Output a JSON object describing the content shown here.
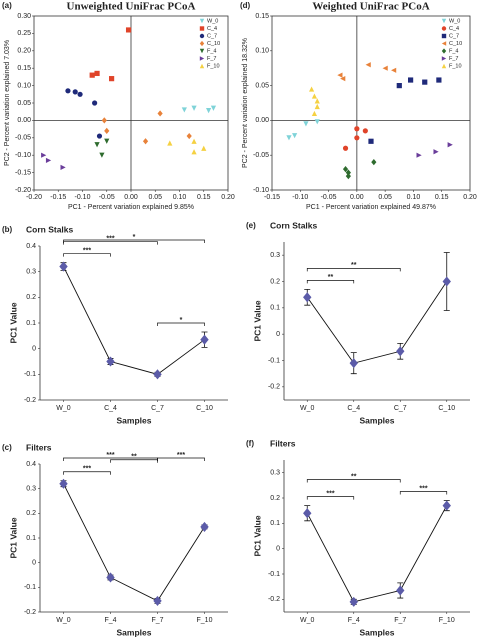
{
  "chart_data": [
    {
      "type": "scatter",
      "panel_label": "(a)",
      "title": "Unweighted UniFrac PCoA",
      "x_label": "PC1 - Percent variation explained 9.85%",
      "y_label": "PC2 - Percent variation explained 7.03%",
      "xlim": [
        -0.2,
        0.2
      ],
      "ylim": [
        -0.2,
        0.3
      ],
      "xticks": [
        {
          "value": -0.2,
          "label": "-0.20"
        },
        {
          "value": -0.15,
          "label": "-0.15"
        },
        {
          "value": -0.1,
          "label": "-0.10"
        },
        {
          "value": -0.05,
          "label": "-0.05"
        },
        {
          "value": 0,
          "label": "0.00"
        },
        {
          "value": 0.05,
          "label": "0.05"
        },
        {
          "value": 0.1,
          "label": "0.10"
        },
        {
          "value": 0.15,
          "label": "0.15"
        },
        {
          "value": 0.2,
          "label": "0.20"
        }
      ],
      "yticks": [
        {
          "value": -0.2,
          "label": "-0.20"
        },
        {
          "value": -0.15,
          "label": "-0.15"
        },
        {
          "value": -0.1,
          "label": "-0.10"
        },
        {
          "value": -0.05,
          "label": "-0.05"
        },
        {
          "value": 0,
          "label": "0.00"
        },
        {
          "value": 0.05,
          "label": "0.05"
        },
        {
          "value": 0.1,
          "label": "0.10"
        },
        {
          "value": 0.15,
          "label": "0.15"
        },
        {
          "value": 0.2,
          "label": "0.20"
        },
        {
          "value": 0.25,
          "label": "0.25"
        },
        {
          "value": 0.3,
          "label": "0.30"
        }
      ],
      "legend": "upper right",
      "series": [
        {
          "name": "W_0",
          "color": "#7fd3d8",
          "marker": "triangle-down",
          "x": [
            0.11,
            0.13,
            0.16,
            0.17
          ],
          "values": [
            0.03,
            0.035,
            0.028,
            0.035
          ]
        },
        {
          "name": "C_4",
          "color": "#e0442a",
          "marker": "square",
          "x": [
            -0.005,
            -0.08,
            -0.07,
            -0.04
          ],
          "values": [
            0.26,
            0.13,
            0.135,
            0.12
          ]
        },
        {
          "name": "C_7",
          "color": "#1f2a7a",
          "marker": "circle",
          "x": [
            -0.13,
            -0.115,
            -0.105,
            -0.075,
            -0.065
          ],
          "values": [
            0.085,
            0.082,
            0.075,
            0.05,
            -0.045
          ]
        },
        {
          "name": "C_10",
          "color": "#e8823a",
          "marker": "diamond",
          "x": [
            -0.055,
            0.06,
            0.12,
            0.03,
            -0.05
          ],
          "values": [
            0.0,
            0.02,
            -0.045,
            -0.06,
            -0.03
          ]
        },
        {
          "name": "F_4",
          "color": "#2e6b2e",
          "marker": "triangle-down",
          "x": [
            -0.07,
            -0.06,
            -0.05
          ],
          "values": [
            -0.07,
            -0.1,
            -0.06
          ]
        },
        {
          "name": "F_7",
          "color": "#6a3d9a",
          "marker": "triangle-right",
          "x": [
            -0.18,
            -0.17,
            -0.14
          ],
          "values": [
            -0.1,
            -0.115,
            -0.135
          ]
        },
        {
          "name": "F_10",
          "color": "#f5d142",
          "marker": "triangle-up",
          "x": [
            0.08,
            0.13,
            0.15,
            0.13
          ],
          "values": [
            -0.065,
            -0.06,
            -0.08,
            -0.09
          ]
        }
      ]
    },
    {
      "type": "line",
      "panel_label": "(b)",
      "subtitle": "Corn Stalks",
      "x_label": "Samples",
      "y_label": "PC1 Value",
      "categories": [
        "W_0",
        "C_4",
        "C_7",
        "C_10"
      ],
      "values": [
        0.32,
        -0.05,
        -0.1,
        0.035
      ],
      "errors": [
        0.015,
        0.012,
        0.008,
        0.03
      ],
      "ylim": [
        -0.2,
        0.4
      ],
      "yticks": [
        -0.2,
        -0.1,
        0,
        0.1,
        0.2,
        0.3,
        0.4
      ],
      "color": "#5b5ba8",
      "brackets": [
        {
          "from": "W_0",
          "to": "C_4",
          "label": "***"
        },
        {
          "from": "W_0",
          "to": "C_7",
          "label": "***"
        },
        {
          "from": "W_0",
          "to": "C_10",
          "label": "*"
        },
        {
          "from": "C_7",
          "to": "C_10",
          "label": "*"
        }
      ]
    },
    {
      "type": "line",
      "panel_label": "(c)",
      "subtitle": "Filters",
      "x_label": "Samples",
      "y_label": "PC1 Value",
      "categories": [
        "W_0",
        "F_4",
        "F_7",
        "F_10"
      ],
      "values": [
        0.32,
        -0.06,
        -0.155,
        0.145
      ],
      "errors": [
        0.012,
        0.01,
        0.01,
        0.008
      ],
      "ylim": [
        -0.2,
        0.4
      ],
      "yticks": [
        -0.2,
        -0.1,
        0,
        0.1,
        0.2,
        0.3,
        0.4
      ],
      "color": "#5b5ba8",
      "brackets": [
        {
          "from": "W_0",
          "to": "F_4",
          "label": "***"
        },
        {
          "from": "W_0",
          "to": "F_7",
          "label": "***"
        },
        {
          "from": "F_4",
          "to": "F_7",
          "label": "**"
        },
        {
          "from": "F_7",
          "to": "F_10",
          "label": "***"
        }
      ]
    },
    {
      "type": "scatter",
      "panel_label": "(d)",
      "title": "Weighted UniFrac PCoA",
      "x_label": "PC1 - Percent variation explained 49.87%",
      "y_label": "PC2 - Percent variation explained 18.32%",
      "xlim": [
        -0.15,
        0.2
      ],
      "ylim": [
        -0.1,
        0.15
      ],
      "xticks": [
        {
          "value": -0.15,
          "label": "-0.15"
        },
        {
          "value": -0.1,
          "label": "-0.10"
        },
        {
          "value": -0.05,
          "label": "-0.05"
        },
        {
          "value": 0,
          "label": "0.00"
        },
        {
          "value": 0.05,
          "label": "0.05"
        },
        {
          "value": 0.1,
          "label": "0.10"
        },
        {
          "value": 0.15,
          "label": "0.15"
        },
        {
          "value": 0.2,
          "label": "0.20"
        }
      ],
      "yticks": [
        {
          "value": -0.1,
          "label": "-0.10"
        },
        {
          "value": -0.05,
          "label": "-0.05"
        },
        {
          "value": 0,
          "label": "0.00"
        },
        {
          "value": 0.05,
          "label": "0.05"
        },
        {
          "value": 0.1,
          "label": "0.10"
        },
        {
          "value": 0.15,
          "label": "0.15"
        }
      ],
      "legend": "upper right",
      "series": [
        {
          "name": "W_0",
          "color": "#7fd3d8",
          "marker": "triangle-down",
          "x": [
            -0.12,
            -0.11,
            -0.09,
            -0.07
          ],
          "values": [
            -0.025,
            -0.022,
            -0.005,
            -0.002
          ]
        },
        {
          "name": "C_4",
          "color": "#e0442a",
          "marker": "circle",
          "x": [
            -0.02,
            0.0,
            0.015,
            0.0
          ],
          "values": [
            -0.04,
            -0.012,
            -0.015,
            -0.025
          ]
        },
        {
          "name": "C_7",
          "color": "#1f2a7a",
          "marker": "square",
          "x": [
            0.075,
            0.095,
            0.12,
            0.145,
            0.025
          ],
          "values": [
            0.05,
            0.058,
            0.055,
            0.058,
            -0.03
          ]
        },
        {
          "name": "C_10",
          "color": "#e8823a",
          "marker": "triangle-left",
          "x": [
            -0.03,
            -0.025,
            0.02,
            0.05,
            0.065
          ],
          "values": [
            0.065,
            0.06,
            0.08,
            0.075,
            0.072
          ]
        },
        {
          "name": "F_4",
          "color": "#2e6b2e",
          "marker": "diamond",
          "x": [
            -0.02,
            -0.015,
            -0.015,
            0.03
          ],
          "values": [
            -0.07,
            -0.075,
            -0.08,
            -0.06
          ]
        },
        {
          "name": "F_7",
          "color": "#6a3d9a",
          "marker": "triangle-right",
          "x": [
            0.11,
            0.14,
            0.165
          ],
          "values": [
            -0.05,
            -0.045,
            -0.035
          ]
        },
        {
          "name": "F_10",
          "color": "#f5d142",
          "marker": "triangle-up",
          "x": [
            -0.08,
            -0.075,
            -0.07,
            -0.07,
            -0.075
          ],
          "values": [
            0.045,
            0.035,
            0.028,
            0.02,
            0.01
          ]
        }
      ]
    },
    {
      "type": "line",
      "panel_label": "(e)",
      "subtitle": "Corn Stalks",
      "x_label": "Samples",
      "y_label": "PC1 Value",
      "categories": [
        "W_0",
        "C_4",
        "C_7",
        "C_10"
      ],
      "values": [
        0.14,
        -0.11,
        -0.065,
        0.2
      ],
      "errors": [
        0.03,
        0.04,
        0.03,
        0.11
      ],
      "ylim": [
        -0.25,
        0.35
      ],
      "yticks": [
        -0.2,
        -0.1,
        0,
        0.1,
        0.2,
        0.3
      ],
      "color": "#5b5ba8",
      "brackets": [
        {
          "from": "W_0",
          "to": "C_4",
          "label": "**"
        },
        {
          "from": "W_0",
          "to": "C_7",
          "label": "**"
        }
      ]
    },
    {
      "type": "line",
      "panel_label": "(f)",
      "subtitle": "Filters",
      "x_label": "Samples",
      "y_label": "PC1 Value",
      "categories": [
        "W_0",
        "F_4",
        "F_7",
        "F_10"
      ],
      "values": [
        0.14,
        -0.21,
        -0.165,
        0.17
      ],
      "errors": [
        0.03,
        0.01,
        0.03,
        0.02
      ],
      "ylim": [
        -0.25,
        0.35
      ],
      "yticks": [
        -0.2,
        -0.1,
        0,
        0.1,
        0.2,
        0.3
      ],
      "color": "#5b5ba8",
      "brackets": [
        {
          "from": "W_0",
          "to": "F_4",
          "label": "***"
        },
        {
          "from": "W_0",
          "to": "F_7",
          "label": "**"
        },
        {
          "from": "F_7",
          "to": "F_10",
          "label": "***"
        }
      ]
    }
  ]
}
